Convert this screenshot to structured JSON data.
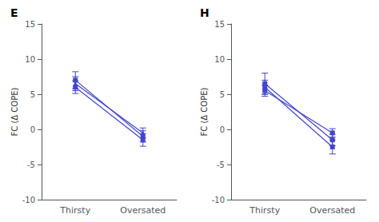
{
  "chart_data": [
    {
      "type": "line",
      "title": "E",
      "categories": [
        "Thirsty",
        "Oversated"
      ],
      "ylabel": "FC (Δ COPE)",
      "ylim": [
        -10,
        15
      ],
      "yticks": [
        -10,
        -5,
        0,
        5,
        10,
        15
      ],
      "grid": false,
      "series": [
        {
          "color": "#4444cc",
          "marker": "square",
          "values": [
            7.0,
            -1.0
          ],
          "errors": [
            1.2,
            0.8
          ]
        },
        {
          "color": "#4444cc",
          "marker": "triangle",
          "values": [
            6.5,
            -0.5
          ],
          "errors": [
            1.0,
            0.7
          ]
        },
        {
          "color": "#4444cc",
          "marker": "square",
          "values": [
            6.0,
            -1.5
          ],
          "errors": [
            0.9,
            0.9
          ]
        }
      ]
    },
    {
      "type": "line",
      "title": "H",
      "categories": [
        "Thirsty",
        "Oversated"
      ],
      "ylabel": "FC (Δ COPE)",
      "ylim": [
        -10,
        15
      ],
      "yticks": [
        -10,
        -5,
        0,
        5,
        10,
        15
      ],
      "grid": false,
      "series": [
        {
          "color": "#4444cc",
          "marker": "square",
          "values": [
            6.5,
            -1.5
          ],
          "errors": [
            1.5,
            0.8
          ]
        },
        {
          "color": "#4444cc",
          "marker": "square",
          "values": [
            6.0,
            -2.5
          ],
          "errors": [
            1.0,
            1.0
          ]
        },
        {
          "color": "#4444cc",
          "marker": "square",
          "values": [
            5.5,
            -0.5
          ],
          "errors": [
            0.8,
            0.6
          ]
        }
      ]
    }
  ]
}
